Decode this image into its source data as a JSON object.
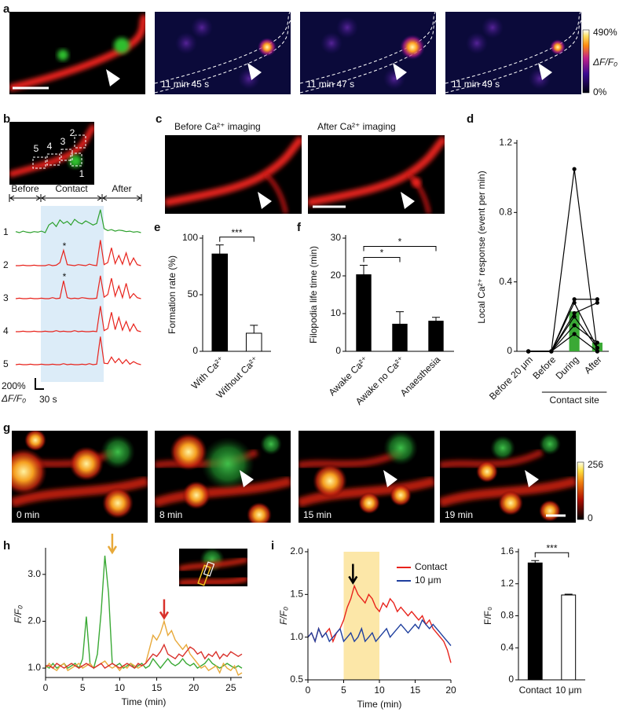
{
  "figure": {
    "a": {
      "label": "a",
      "times": [
        "11 min 45 s",
        "11 min 47 s",
        "11 min 49 s"
      ],
      "colorbar": {
        "max": "490%",
        "name": "ΔF/F₀",
        "min": "0%"
      }
    },
    "b": {
      "label": "b",
      "rois": [
        "1",
        "2",
        "3",
        "4",
        "5"
      ],
      "phases": [
        "Before",
        "Contact",
        "After"
      ],
      "scale_y": "200%",
      "scale_y_unit": "ΔF/F₀",
      "scale_x": "30 s",
      "asterisks": [
        "*",
        "*"
      ]
    },
    "c": {
      "label": "c",
      "titles": [
        "Before Ca²⁺ imaging",
        "After Ca²⁺ imaging"
      ]
    },
    "g": {
      "label": "g",
      "times": [
        "0 min",
        "8 min",
        "15 min",
        "19 min"
      ],
      "colorbar": {
        "max": "256",
        "min": "0"
      }
    },
    "panel_labels": {
      "d": "d",
      "e": "e",
      "f": "f",
      "h": "h",
      "i": "i"
    }
  },
  "chart_data": [
    {
      "type": "line",
      "x": [
        0,
        15,
        30,
        45,
        60,
        75,
        90,
        105,
        120,
        135,
        150,
        165,
        180,
        195,
        210,
        225,
        240,
        255,
        270,
        285,
        300,
        315,
        330,
        345,
        360,
        375,
        390,
        405,
        420,
        435,
        450,
        465,
        480,
        495,
        510
      ],
      "series": [
        {
          "name": "1",
          "color": "#2ca02c",
          "values": [
            20,
            0,
            30,
            10,
            0,
            20,
            10,
            30,
            0,
            150,
            200,
            120,
            250,
            180,
            220,
            150,
            260,
            200,
            170,
            230,
            190,
            150,
            180,
            450,
            80,
            40,
            60,
            30,
            50,
            40,
            20,
            30,
            10,
            20,
            0
          ]
        },
        {
          "name": "2",
          "color": "#e8231c",
          "values": [
            0,
            0,
            10,
            0,
            0,
            10,
            0,
            0,
            0,
            20,
            0,
            10,
            60,
            300,
            20,
            10,
            0,
            20,
            10,
            0,
            30,
            10,
            0,
            500,
            20,
            60,
            350,
            40,
            200,
            30,
            250,
            10,
            150,
            20,
            0
          ]
        },
        {
          "name": "3",
          "color": "#e8231c",
          "values": [
            0,
            10,
            0,
            0,
            10,
            0,
            0,
            10,
            0,
            0,
            20,
            0,
            10,
            350,
            20,
            0,
            10,
            0,
            20,
            10,
            0,
            0,
            10,
            450,
            30,
            80,
            400,
            50,
            250,
            20,
            300,
            10,
            100,
            20,
            0
          ]
        },
        {
          "name": "4",
          "color": "#e8231c",
          "values": [
            0,
            0,
            10,
            0,
            0,
            10,
            0,
            0,
            10,
            0,
            0,
            20,
            0,
            10,
            0,
            0,
            20,
            0,
            10,
            0,
            0,
            10,
            0,
            500,
            20,
            60,
            380,
            40,
            280,
            30,
            200,
            10,
            150,
            20,
            0
          ]
        },
        {
          "name": "5",
          "color": "#e8231c",
          "values": [
            0,
            10,
            0,
            0,
            10,
            0,
            0,
            10,
            0,
            0,
            10,
            0,
            0,
            20,
            0,
            10,
            0,
            0,
            10,
            0,
            20,
            0,
            10,
            550,
            30,
            20,
            150,
            40,
            120,
            20,
            100,
            10,
            60,
            20,
            0
          ]
        }
      ]
    },
    {
      "type": "bar",
      "y_label": "Local Ca²⁺ response (event per min)",
      "categories": [
        "Before 20 μm",
        "Before",
        "During",
        "After"
      ],
      "group_label": "Contact site",
      "values": [
        0,
        0,
        0.23,
        0.05
      ],
      "color": "#3aa935",
      "cells": [
        [
          0,
          0,
          1.05,
          0
        ],
        [
          0,
          0,
          0.3,
          0.3
        ],
        [
          0,
          0,
          0.28,
          0.02
        ],
        [
          0,
          0,
          0.22,
          0.28
        ],
        [
          0,
          0,
          0.2,
          0.02
        ],
        [
          0,
          0,
          0.15,
          0.05
        ],
        [
          0,
          0,
          0.1,
          0
        ]
      ],
      "ylim": [
        0,
        1.2
      ],
      "yticks": [
        0,
        0.4,
        0.8,
        1.2
      ]
    },
    {
      "type": "bar",
      "y_label": "Formation rate (%)",
      "categories": [
        "With Ca²⁺",
        "Without Ca²⁺"
      ],
      "values": [
        86,
        16
      ],
      "errors": [
        8,
        7
      ],
      "colors": [
        "#000000",
        "#ffffff"
      ],
      "ylim": [
        0,
        100
      ],
      "yticks": [
        0,
        50,
        100
      ],
      "significance": "***"
    },
    {
      "type": "bar",
      "y_label": "Filopodia life time (min)",
      "categories": [
        "Awake Ca²⁺",
        "Awake no Ca²⁺",
        "Anaesthesia"
      ],
      "values": [
        20.3,
        7.2,
        8
      ],
      "errors": [
        2.5,
        3.3,
        1
      ],
      "colors": [
        "#000000",
        "#000000",
        "#000000"
      ],
      "ylim": [
        0,
        30
      ],
      "yticks": [
        0,
        10,
        20,
        30
      ],
      "significance": [
        "*",
        "*"
      ]
    },
    {
      "type": "line",
      "x_label": "Time (min)",
      "y_label": "F/F₀",
      "x": [
        0,
        0.5,
        1,
        1.5,
        2,
        2.5,
        3,
        3.5,
        4,
        4.5,
        5,
        5.5,
        6,
        6.5,
        7,
        7.5,
        8,
        8.5,
        9,
        9.5,
        10,
        10.5,
        11,
        11.5,
        12,
        12.5,
        13,
        13.5,
        14,
        14.5,
        15,
        15.5,
        16,
        16.5,
        17,
        17.5,
        18,
        18.5,
        19,
        19.5,
        20,
        20.5,
        21,
        21.5,
        22,
        22.5,
        23,
        23.5,
        24,
        24.5,
        25,
        25.5,
        26,
        26.5
      ],
      "series": [
        {
          "color": "#3aa935",
          "values": [
            1.05,
            1.0,
            1.1,
            1.0,
            1.05,
            1.1,
            1.0,
            1.05,
            1.1,
            1.0,
            1.2,
            2.1,
            1.1,
            1.0,
            1.3,
            2.2,
            3.4,
            2.6,
            1.1,
            1.05,
            1.1,
            1.0,
            1.05,
            1.1,
            1.0,
            1.05,
            1.1,
            1.0,
            1.05,
            1.2,
            1.1,
            1.0,
            1.1,
            1.2,
            1.1,
            1.05,
            1.1,
            1.2,
            1.1,
            1.05,
            1.1,
            1.0,
            1.05,
            1.1,
            1.2,
            1.1,
            1.05,
            1.0,
            1.05,
            1.1,
            1.05,
            1.0,
            1.05,
            1.0
          ]
        },
        {
          "color": "#e8a93a",
          "values": [
            1.0,
            1.1,
            1.0,
            0.95,
            1.05,
            1.1,
            0.95,
            1.0,
            1.05,
            1.1,
            1.0,
            1.05,
            1.1,
            1.0,
            1.05,
            1.1,
            1.15,
            1.05,
            1.0,
            1.05,
            0.95,
            1.05,
            1.0,
            1.1,
            1.05,
            1.0,
            1.05,
            1.1,
            1.4,
            1.7,
            1.6,
            1.75,
            2.0,
            1.7,
            1.8,
            1.6,
            1.5,
            1.4,
            1.5,
            1.3,
            1.2,
            1.1,
            1.0,
            1.05,
            0.95,
            1.0,
            1.05,
            0.9,
            1.1,
            1.0,
            0.95,
            1.05,
            0.85,
            0.9
          ]
        },
        {
          "color": "#d9312b",
          "values": [
            1.05,
            1.05,
            1.0,
            1.1,
            1.05,
            1.0,
            1.05,
            1.1,
            1.05,
            1.0,
            1.05,
            1.1,
            1.05,
            1.0,
            1.05,
            1.1,
            1.0,
            1.05,
            1.1,
            1.05,
            1.0,
            1.05,
            1.1,
            1.05,
            1.0,
            1.1,
            1.05,
            1.1,
            1.2,
            1.3,
            1.25,
            1.35,
            1.5,
            1.3,
            1.25,
            1.2,
            1.3,
            1.25,
            1.35,
            1.45,
            1.4,
            1.3,
            1.35,
            1.2,
            1.3,
            1.25,
            1.35,
            1.2,
            1.3,
            1.25,
            1.35,
            1.3,
            1.25,
            1.3
          ]
        }
      ],
      "arrows": [
        {
          "x": 9,
          "color": "#e8a93a"
        },
        {
          "x": 16,
          "color": "#d9312b"
        }
      ],
      "xlim": [
        0,
        26.5
      ],
      "xticks": [
        0,
        5,
        10,
        15,
        20,
        25
      ],
      "ylim": [
        0.8,
        3.5
      ],
      "yticks": [
        {
          "value": 1,
          "label": "1.0"
        },
        {
          "value": 2,
          "label": "2.0"
        },
        {
          "value": 3,
          "label": "3.0"
        }
      ]
    },
    {
      "type": "line",
      "x_label": "Time (min)",
      "y_label": "F/F₀",
      "x": [
        0,
        0.5,
        1,
        1.5,
        2,
        2.5,
        3,
        3.5,
        4,
        4.5,
        5,
        5.5,
        6,
        6.5,
        7,
        7.5,
        8,
        8.5,
        9,
        9.5,
        10,
        10.5,
        11,
        11.5,
        12,
        12.5,
        13,
        13.5,
        14,
        14.5,
        15,
        15.5,
        16,
        16.5,
        17,
        17.5,
        18,
        18.5,
        19,
        19.5,
        20
      ],
      "series": [
        {
          "name": "Contact",
          "color": "#e8231c",
          "values": [
            1.0,
            1.05,
            0.95,
            1.1,
            1.0,
            1.05,
            1.1,
            0.95,
            1.05,
            1.1,
            1.2,
            1.35,
            1.45,
            1.6,
            1.5,
            1.45,
            1.4,
            1.5,
            1.45,
            1.35,
            1.3,
            1.4,
            1.35,
            1.45,
            1.4,
            1.3,
            1.35,
            1.3,
            1.25,
            1.3,
            1.25,
            1.2,
            1.25,
            1.15,
            1.2,
            1.1,
            1.05,
            1.0,
            0.95,
            0.85,
            0.7
          ]
        },
        {
          "name": "10 μm",
          "color": "#1f3f9e",
          "values": [
            1.0,
            1.05,
            0.95,
            1.1,
            1.0,
            1.05,
            0.95,
            1.0,
            1.05,
            1.1,
            0.95,
            1.0,
            1.05,
            0.95,
            1.0,
            1.1,
            0.95,
            1.0,
            1.05,
            0.95,
            1.0,
            1.05,
            1.1,
            1.0,
            1.05,
            1.1,
            1.15,
            1.1,
            1.05,
            1.1,
            1.15,
            1.1,
            1.2,
            1.15,
            1.1,
            1.15,
            1.1,
            1.05,
            1.0,
            0.95,
            0.9
          ]
        }
      ],
      "highlight": [
        5,
        10
      ],
      "highlight_color": "#fce7a8",
      "arrows": [
        {
          "x": 6.3,
          "color": "#000000"
        }
      ],
      "xlim": [
        0,
        20
      ],
      "xticks": [
        0,
        5,
        10,
        15,
        20
      ],
      "ylim": [
        0.5,
        2.0
      ],
      "yticks": [
        {
          "value": 0.5,
          "label": "0.5"
        },
        {
          "value": 1,
          "label": "1.0"
        },
        {
          "value": 1.5,
          "label": "1.5"
        },
        {
          "value": 2,
          "label": "2.0"
        }
      ]
    },
    {
      "type": "bar",
      "y_label": "F/F₀",
      "categories": [
        "Contact",
        "10 μm"
      ],
      "values": [
        1.46,
        1.06
      ],
      "errors": [
        0.03,
        0.01
      ],
      "colors": [
        "#000000",
        "#ffffff"
      ],
      "ylim": [
        0,
        1.6
      ],
      "yticks": [
        0,
        0.4,
        0.8,
        1.2,
        1.6
      ],
      "significance": "***"
    }
  ]
}
